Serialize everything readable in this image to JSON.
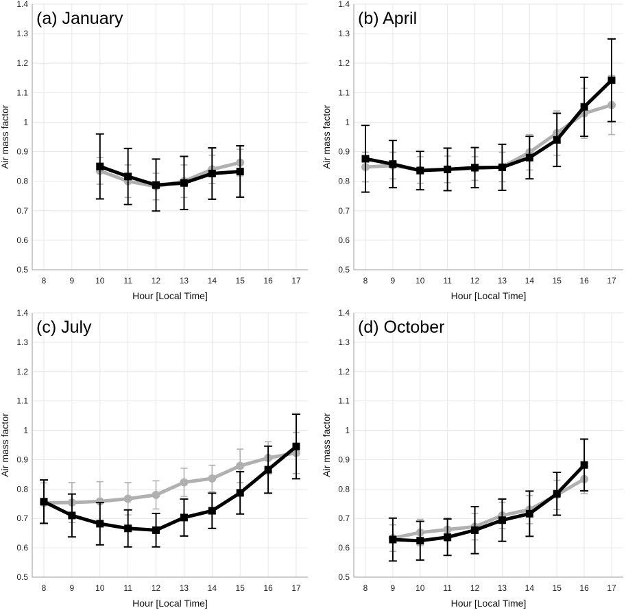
{
  "chart_data": [
    {
      "type": "line",
      "title": "(a) January",
      "xlabel": "Hour [Local Time]",
      "ylabel": "Air mass factor",
      "xlim": [
        8,
        17
      ],
      "ylim": [
        0.5,
        1.4
      ],
      "xticks": [
        "8",
        "9",
        "10",
        "11",
        "12",
        "13",
        "14",
        "15",
        "16",
        "17"
      ],
      "yticks": [
        "0.5",
        "0.6",
        "0.7",
        "0.8",
        "0.9",
        "1",
        "1.1",
        "1.2",
        "1.3",
        "1.4"
      ],
      "grid": true,
      "series": [
        {
          "color": "#b0b0b0",
          "marker": "circle",
          "x": [
            10,
            11,
            12,
            13,
            14,
            15
          ],
          "y": [
            0.835,
            0.8,
            0.782,
            0.8,
            0.84,
            0.863
          ],
          "err": [
            0.045,
            0.055,
            0.045,
            0.055,
            0.048,
            0.045
          ]
        },
        {
          "color": "#000000",
          "marker": "square",
          "x": [
            10,
            11,
            12,
            13,
            14,
            15
          ],
          "y": [
            0.85,
            0.816,
            0.787,
            0.794,
            0.826,
            0.833
          ],
          "err": [
            0.11,
            0.095,
            0.088,
            0.09,
            0.087,
            0.087
          ]
        }
      ]
    },
    {
      "type": "line",
      "title": "(b) April",
      "xlabel": "Hour [Local Time]",
      "ylabel": "Air mass factor",
      "xlim": [
        8,
        17
      ],
      "ylim": [
        0.5,
        1.4
      ],
      "xticks": [
        "8",
        "9",
        "10",
        "11",
        "12",
        "13",
        "14",
        "15",
        "16",
        "17"
      ],
      "yticks": [
        "0.5",
        "0.6",
        "0.7",
        "0.8",
        "0.9",
        "1",
        "1.1",
        "1.2",
        "1.3",
        "1.4"
      ],
      "grid": true,
      "series": [
        {
          "color": "#b0b0b0",
          "marker": "circle",
          "x": [
            8,
            9,
            10,
            11,
            12,
            13,
            14,
            15,
            16,
            17
          ],
          "y": [
            0.848,
            0.853,
            0.838,
            0.84,
            0.843,
            0.848,
            0.898,
            0.963,
            1.03,
            1.058
          ],
          "err": [
            0.05,
            0.045,
            0.045,
            0.045,
            0.04,
            0.05,
            0.06,
            0.075,
            0.085,
            0.1
          ]
        },
        {
          "color": "#000000",
          "marker": "square",
          "x": [
            8,
            9,
            10,
            11,
            12,
            13,
            14,
            15,
            16,
            17
          ],
          "y": [
            0.876,
            0.858,
            0.836,
            0.84,
            0.846,
            0.847,
            0.88,
            0.94,
            1.052,
            1.142
          ],
          "err": [
            0.113,
            0.08,
            0.065,
            0.072,
            0.068,
            0.078,
            0.072,
            0.09,
            0.1,
            0.14
          ]
        }
      ]
    },
    {
      "type": "line",
      "title": "(c) July",
      "xlabel": "Hour [Local Time]",
      "ylabel": "Air mass factor",
      "xlim": [
        8,
        17
      ],
      "ylim": [
        0.5,
        1.4
      ],
      "xticks": [
        "8",
        "9",
        "10",
        "11",
        "12",
        "13",
        "14",
        "15",
        "16",
        "17"
      ],
      "yticks": [
        "0.5",
        "0.6",
        "0.7",
        "0.8",
        "0.9",
        "1",
        "1.1",
        "1.2",
        "1.3",
        "1.4"
      ],
      "grid": true,
      "series": [
        {
          "color": "#b0b0b0",
          "marker": "circle",
          "x": [
            8,
            9,
            10,
            11,
            12,
            13,
            14,
            15,
            16,
            17
          ],
          "y": [
            0.753,
            0.754,
            0.758,
            0.767,
            0.78,
            0.823,
            0.836,
            0.879,
            0.906,
            0.923
          ],
          "err": [
            0.068,
            0.068,
            0.067,
            0.055,
            0.048,
            0.048,
            0.045,
            0.057,
            0.055,
            0.07
          ]
        },
        {
          "color": "#000000",
          "marker": "square",
          "x": [
            8,
            9,
            10,
            11,
            12,
            13,
            14,
            15,
            16,
            17
          ],
          "y": [
            0.757,
            0.71,
            0.682,
            0.666,
            0.66,
            0.703,
            0.726,
            0.787,
            0.866,
            0.945
          ],
          "err": [
            0.074,
            0.073,
            0.072,
            0.063,
            0.057,
            0.063,
            0.06,
            0.072,
            0.08,
            0.11
          ]
        }
      ]
    },
    {
      "type": "line",
      "title": "(d) October",
      "xlabel": "Hour [Local Time]",
      "ylabel": "Air mass factor",
      "xlim": [
        8,
        17
      ],
      "ylim": [
        0.5,
        1.4
      ],
      "xticks": [
        "8",
        "9",
        "10",
        "11",
        "12",
        "13",
        "14",
        "15",
        "16",
        "17"
      ],
      "yticks": [
        "0.5",
        "0.6",
        "0.7",
        "0.8",
        "0.9",
        "1",
        "1.1",
        "1.2",
        "1.3",
        "1.4"
      ],
      "grid": true,
      "series": [
        {
          "color": "#b0b0b0",
          "marker": "circle",
          "x": [
            9,
            10,
            11,
            12,
            13,
            14,
            15,
            16
          ],
          "y": [
            0.633,
            0.652,
            0.662,
            0.672,
            0.71,
            0.73,
            0.78,
            0.834
          ],
          "err": [
            0.045,
            0.045,
            0.04,
            0.045,
            0.045,
            0.048,
            0.05,
            0.05
          ]
        },
        {
          "color": "#000000",
          "marker": "square",
          "x": [
            9,
            10,
            11,
            12,
            13,
            14,
            15,
            16
          ],
          "y": [
            0.628,
            0.624,
            0.636,
            0.66,
            0.694,
            0.716,
            0.784,
            0.882
          ],
          "err": [
            0.073,
            0.066,
            0.062,
            0.08,
            0.072,
            0.077,
            0.073,
            0.088
          ]
        }
      ]
    }
  ]
}
